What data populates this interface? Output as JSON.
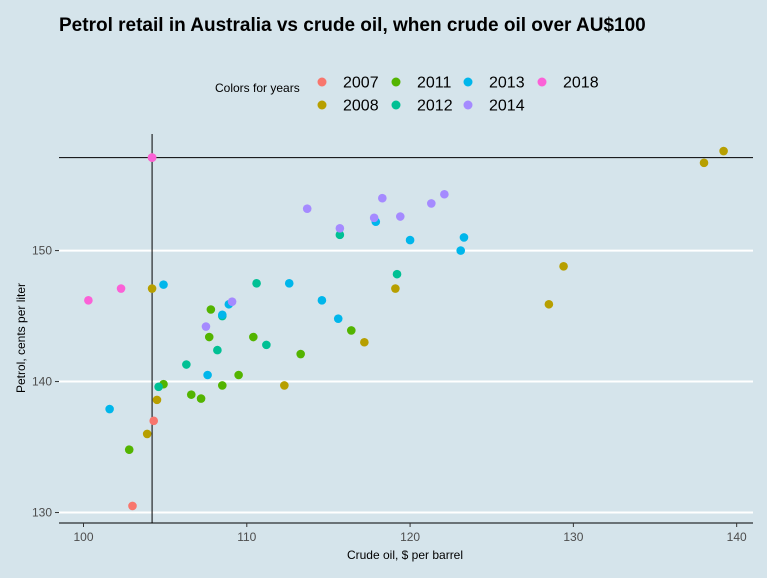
{
  "chart_data": {
    "type": "scatter",
    "title": "Petrol retail in Australia vs crude oil, when crude oil over AU$100",
    "xlabel": "Crude oil, $ per barrel",
    "ylabel": "Petrol, cents per liter",
    "xlim": [
      98.5,
      141
    ],
    "ylim": [
      129.2,
      158.9
    ],
    "xticks": [
      100,
      110,
      120,
      130,
      140
    ],
    "yticks": [
      130,
      140,
      150
    ],
    "grid": "horizontal",
    "legend": {
      "title": "Colors for years",
      "placement": "top"
    },
    "reference_lines": {
      "x": 104.2,
      "y": 157.1
    },
    "series": [
      {
        "name": "2007",
        "color": "#f8766d",
        "points": [
          [
            103.0,
            130.5
          ],
          [
            104.3,
            137.0
          ],
          [
            104.2,
            157.1
          ]
        ]
      },
      {
        "name": "2008",
        "color": "#b79f00",
        "points": [
          [
            103.9,
            136.0
          ],
          [
            104.5,
            138.6
          ],
          [
            104.2,
            147.1
          ],
          [
            112.3,
            139.7
          ],
          [
            117.2,
            143.0
          ],
          [
            119.1,
            147.1
          ],
          [
            128.5,
            145.9
          ],
          [
            129.4,
            148.8
          ],
          [
            138.0,
            156.7
          ],
          [
            139.2,
            157.6
          ]
        ]
      },
      {
        "name": "2011",
        "color": "#53b400",
        "points": [
          [
            102.8,
            134.8
          ],
          [
            104.9,
            139.8
          ],
          [
            106.6,
            139.0
          ],
          [
            107.2,
            138.7
          ],
          [
            108.5,
            139.7
          ],
          [
            109.5,
            140.5
          ],
          [
            107.7,
            143.4
          ],
          [
            107.8,
            145.5
          ],
          [
            110.4,
            143.4
          ],
          [
            113.3,
            142.1
          ],
          [
            116.4,
            143.9
          ]
        ]
      },
      {
        "name": "2012",
        "color": "#00c094",
        "points": [
          [
            104.6,
            139.6
          ],
          [
            106.3,
            141.3
          ],
          [
            108.2,
            142.4
          ],
          [
            108.5,
            145.0
          ],
          [
            110.6,
            147.5
          ],
          [
            111.2,
            142.8
          ],
          [
            115.7,
            151.2
          ],
          [
            119.2,
            148.2
          ]
        ]
      },
      {
        "name": "2013",
        "color": "#00b6eb",
        "points": [
          [
            101.6,
            137.9
          ],
          [
            104.9,
            147.4
          ],
          [
            107.6,
            140.5
          ],
          [
            108.5,
            145.1
          ],
          [
            108.9,
            145.9
          ],
          [
            112.6,
            147.5
          ],
          [
            114.6,
            146.2
          ],
          [
            115.6,
            144.8
          ],
          [
            117.9,
            152.2
          ],
          [
            120.0,
            150.8
          ],
          [
            123.1,
            150.0
          ],
          [
            123.3,
            151.0
          ]
        ]
      },
      {
        "name": "2014",
        "color": "#a58aff",
        "points": [
          [
            107.5,
            144.2
          ],
          [
            109.1,
            146.1
          ],
          [
            113.7,
            153.2
          ],
          [
            115.7,
            151.7
          ],
          [
            117.8,
            152.5
          ],
          [
            118.3,
            154.0
          ],
          [
            119.4,
            152.6
          ],
          [
            121.3,
            153.6
          ],
          [
            122.1,
            154.3
          ]
        ]
      },
      {
        "name": "2018",
        "color": "#fb61d7",
        "points": [
          [
            100.3,
            146.2
          ],
          [
            102.3,
            147.1
          ],
          [
            104.2,
            157.1
          ]
        ]
      }
    ]
  }
}
